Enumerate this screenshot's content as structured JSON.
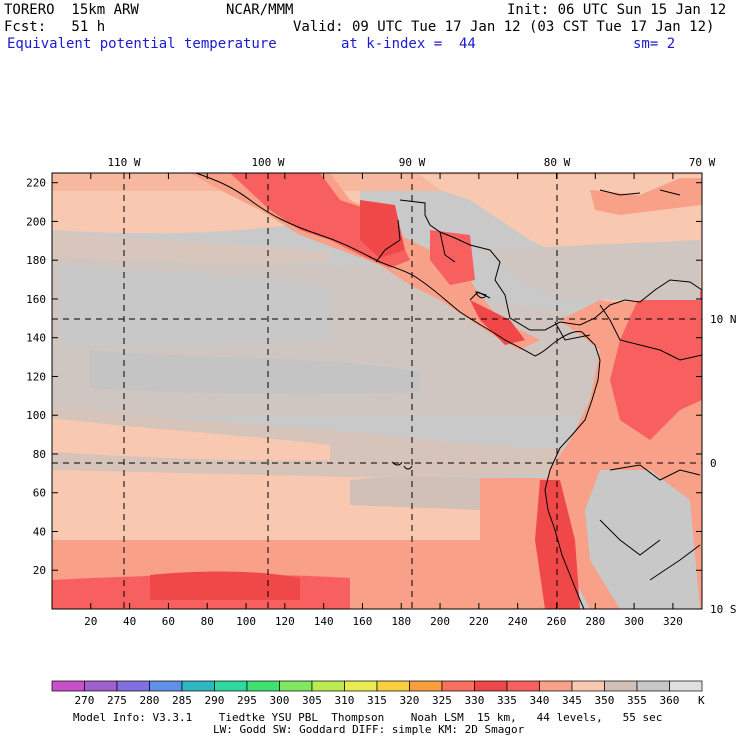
{
  "header": {
    "model": "TORERO  15km ARW",
    "org": "NCAR/MMM",
    "init": "Init: 06 UTC Sun 15 Jan 12",
    "fcst": "Fcst:   51 h",
    "valid": "Valid: 09 UTC Tue 17 Jan 12 (03 CST Tue 17 Jan 12)",
    "field": "Equivalent potential temperature",
    "level": "at k-index =  44",
    "smooth": "sm= 2"
  },
  "map": {
    "lon_labels": [
      "110 W",
      "100 W",
      "90 W",
      "80 W",
      "70 W"
    ],
    "lat_labels": [
      "10 N",
      "0",
      "10 S"
    ],
    "x_ticks": [
      20,
      40,
      60,
      80,
      100,
      120,
      140,
      160,
      180,
      200,
      220,
      240,
      260,
      280,
      300,
      320
    ],
    "y_ticks": [
      20,
      40,
      60,
      80,
      100,
      120,
      140,
      160,
      180,
      200,
      220
    ],
    "x_range": [
      0,
      335
    ],
    "y_range": [
      0,
      225
    ],
    "colors": {
      "land_outline": "#000000",
      "grid_line": "#000000"
    }
  },
  "colorbar": {
    "levels": [
      "270",
      "275",
      "280",
      "285",
      "290",
      "295",
      "300",
      "305",
      "310",
      "315",
      "320",
      "325",
      "330",
      "335",
      "340",
      "345",
      "350",
      "355",
      "360"
    ],
    "unit": "K",
    "colors": [
      "#c850c8",
      "#a060d0",
      "#8070e0",
      "#6090e8",
      "#30b8c0",
      "#30d8a0",
      "#40e070",
      "#80e860",
      "#b8ec50",
      "#e8ec50",
      "#f8d040",
      "#f8a040",
      "#f87060",
      "#f04848",
      "#f86060",
      "#f8a088",
      "#f8c8b0",
      "#d0c0b8",
      "#c8c8c8",
      "#e0e0e0"
    ]
  },
  "footer": {
    "line1": "Model Info: V3.3.1    Tiedtke YSU PBL  Thompson    Noah LSM  15 km,   44 levels,   55 sec",
    "line2": "LW: Godd SW: Goddard DIFF: simple KM: 2D Smagor"
  }
}
